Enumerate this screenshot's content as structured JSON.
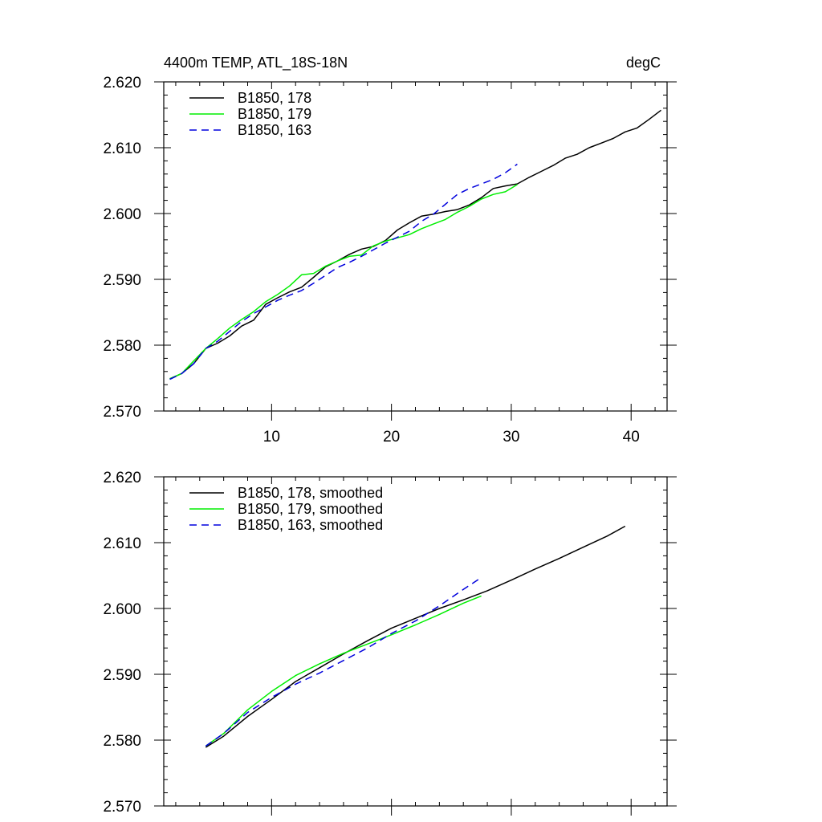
{
  "chart_data": [
    {
      "type": "line",
      "title": "4400m TEMP, ATL_18S-18N",
      "units": "degC",
      "xlim": [
        1,
        43
      ],
      "ylim": [
        2.57,
        2.62
      ],
      "x_ticks": [
        10,
        20,
        30,
        40
      ],
      "x_tick_labels": [
        "10",
        "20",
        "30",
        "40"
      ],
      "y_ticks": [
        2.57,
        2.58,
        2.59,
        2.6,
        2.61,
        2.62
      ],
      "y_tick_labels": [
        "2.570",
        "2.580",
        "2.590",
        "2.600",
        "2.610",
        "2.620"
      ],
      "legend_position": "top-left",
      "series": [
        {
          "name": "B1850, 178",
          "color": "#000000",
          "dash": "solid",
          "x": [
            1.5,
            2.5,
            3.5,
            4.5,
            5.5,
            6.5,
            7.5,
            8.5,
            9.5,
            10.5,
            11.5,
            12.5,
            13.5,
            14.5,
            15.5,
            16.5,
            17.5,
            18.5,
            19.5,
            20.5,
            21.5,
            22.5,
            23.5,
            24.5,
            25.5,
            26.5,
            27.5,
            28.5,
            29.5,
            30.5,
            31.5,
            32.5,
            33.5,
            34.5,
            35.5,
            36.5,
            37.5,
            38.5,
            39.5,
            40.5,
            41.5,
            42.5
          ],
          "y": [
            2.5749,
            2.5757,
            2.5772,
            2.5795,
            2.5803,
            2.5814,
            2.5829,
            2.5838,
            2.5862,
            2.5872,
            2.5881,
            2.5888,
            2.5903,
            2.5919,
            2.5928,
            2.5938,
            2.5946,
            2.595,
            2.5959,
            2.5975,
            2.5986,
            2.5996,
            2.5999,
            2.6003,
            2.6006,
            2.6013,
            2.6024,
            2.6038,
            2.6042,
            2.6045,
            2.6055,
            2.6064,
            2.6073,
            2.6084,
            2.609,
            2.61,
            2.6107,
            2.6114,
            2.6124,
            2.613,
            2.6143,
            2.6157
          ]
        },
        {
          "name": "B1850, 179",
          "color": "#00ee00",
          "dash": "solid",
          "x": [
            1.5,
            2.5,
            3.5,
            4.5,
            5.5,
            6.5,
            7.5,
            8.5,
            9.5,
            10.5,
            11.5,
            12.5,
            13.5,
            14.5,
            15.5,
            16.5,
            17.5,
            18.5,
            19.5,
            20.5,
            21.5,
            22.5,
            23.5,
            24.5,
            25.5,
            26.5,
            27.5,
            28.5,
            29.5,
            30.5
          ],
          "y": [
            2.5749,
            2.5757,
            2.5776,
            2.5795,
            2.581,
            2.5826,
            2.5839,
            2.5851,
            2.5866,
            2.5877,
            2.589,
            2.5907,
            2.5909,
            2.592,
            2.5928,
            2.5935,
            2.5937,
            2.5951,
            2.5958,
            2.5963,
            2.5968,
            2.5977,
            2.5984,
            2.5991,
            2.6002,
            2.6011,
            2.6022,
            2.6029,
            2.6033,
            2.6044
          ]
        },
        {
          "name": "B1850, 163",
          "color": "#0000dd",
          "dash": "dashed",
          "x": [
            1.5,
            2.5,
            3.5,
            4.5,
            5.5,
            6.5,
            7.5,
            8.5,
            9.5,
            10.5,
            11.5,
            12.5,
            13.5,
            14.5,
            15.5,
            16.5,
            17.5,
            18.5,
            19.5,
            20.5,
            21.5,
            22.5,
            23.5,
            24.5,
            25.5,
            26.5,
            27.5,
            28.5,
            29.5,
            30.5
          ],
          "y": [
            2.5748,
            2.5757,
            2.5772,
            2.5795,
            2.5806,
            2.5821,
            2.5836,
            2.5848,
            2.5858,
            2.5868,
            2.5876,
            2.5883,
            2.5894,
            2.5906,
            2.5918,
            2.5926,
            2.5935,
            2.5945,
            2.5955,
            2.5964,
            2.5973,
            2.5988,
            2.5999,
            2.6014,
            2.6029,
            2.6038,
            2.6045,
            2.6052,
            2.6062,
            2.6075
          ]
        }
      ]
    },
    {
      "type": "line",
      "title": "",
      "units": "",
      "xlim": [
        1,
        43
      ],
      "ylim": [
        2.57,
        2.62
      ],
      "x_ticks": [
        10,
        20,
        30,
        40
      ],
      "x_tick_labels": [],
      "y_ticks": [
        2.57,
        2.58,
        2.59,
        2.6,
        2.61,
        2.62
      ],
      "y_tick_labels": [
        "2.570",
        "2.580",
        "2.590",
        "2.600",
        "2.610",
        "2.620"
      ],
      "legend_position": "top-left",
      "series": [
        {
          "name": "B1850, 178, smoothed",
          "color": "#000000",
          "dash": "solid",
          "x": [
            4.5,
            6,
            8,
            10,
            12,
            14,
            16,
            18,
            20,
            22,
            24,
            26,
            28,
            30,
            32,
            34,
            36,
            38,
            39.5
          ],
          "y": [
            2.5789,
            2.5806,
            2.5836,
            2.5862,
            2.5889,
            2.591,
            2.5931,
            2.5951,
            2.597,
            2.5985,
            2.6,
            2.6013,
            2.6027,
            2.6043,
            2.606,
            2.6076,
            2.6093,
            2.611,
            2.6125
          ]
        },
        {
          "name": "B1850, 179, smoothed",
          "color": "#00ee00",
          "dash": "solid",
          "x": [
            4.5,
            6,
            8,
            10,
            12,
            14,
            16,
            18,
            20,
            22,
            24,
            26,
            27.5
          ],
          "y": [
            2.5791,
            2.581,
            2.5846,
            2.5874,
            2.5898,
            2.5916,
            2.5932,
            2.5946,
            2.596,
            2.5975,
            2.5991,
            2.6008,
            2.6019
          ]
        },
        {
          "name": "B1850, 163, smoothed",
          "color": "#0000dd",
          "dash": "dashed",
          "x": [
            4.5,
            6,
            8,
            10,
            12,
            14,
            16,
            18,
            20,
            22,
            24,
            26,
            27.5
          ],
          "y": [
            2.5791,
            2.581,
            2.5842,
            2.5865,
            2.5885,
            2.5902,
            2.5921,
            2.594,
            2.5962,
            2.5981,
            2.6004,
            2.6029,
            2.6047
          ]
        }
      ]
    }
  ]
}
